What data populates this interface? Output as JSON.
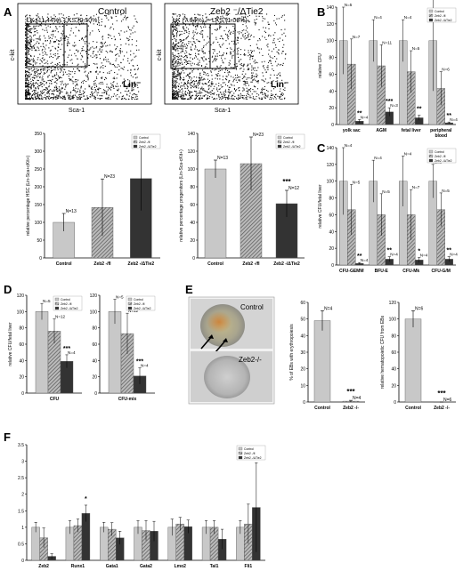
{
  "panels": {
    "A": "A",
    "B": "B",
    "C": "C",
    "D": "D",
    "E": "E",
    "F": "F"
  },
  "colors": {
    "control": "#c8c8c8",
    "zeb2_fl": "#8a8a8a",
    "zeb2_ko": "#333333",
    "axis": "#000000"
  },
  "legend": [
    "Control",
    "Zeb2 -/fl",
    "Zeb2 -/ΔTie2"
  ],
  "facs": [
    {
      "title": "Control",
      "gate_lk": "LK (11.44%)",
      "gate_lks": "LKS (0.50%)",
      "xaxis": "Sca-1",
      "yaxis": "c-kit",
      "corner": "Lin⁻"
    },
    {
      "title": "Zeb2 ⁻/ΔTie2",
      "gate_lk": "LK (7.64%)",
      "gate_lks": "LKS (1.06%)",
      "xaxis": "Sca-1",
      "yaxis": "c-kit",
      "corner": "Lin⁻"
    }
  ],
  "micro": {
    "top_label": "Control",
    "bottom_label": "Zeb2-/-"
  },
  "chart_data": [
    {
      "id": "A1",
      "type": "bar",
      "ylabel": "relative percentage HSC (Lin-Sca+cKit+)",
      "categories": [
        "Control",
        "Zeb2 -/fl",
        "Zeb2 -/ΔTie2"
      ],
      "yticks": [
        "0",
        "50",
        "100",
        "150",
        "200",
        "250",
        "300",
        "350"
      ],
      "ylim": [
        0,
        350
      ],
      "series": [
        {
          "values": [
            100,
            142,
            223
          ]
        }
      ],
      "err": [
        [
          25
        ],
        [
          80
        ],
        [
          90
        ]
      ],
      "labels": [
        "N=13",
        "N=23",
        "N=12"
      ],
      "stars": [
        "",
        "",
        "***"
      ]
    },
    {
      "id": "A2",
      "type": "bar",
      "ylabel": "relative percentage progenitors (Lin-Sca-cKit+)",
      "categories": [
        "Control",
        "Zeb2 -/fl",
        "Zeb2 -/ΔTie2"
      ],
      "yticks": [
        "0",
        "20",
        "40",
        "60",
        "80",
        "100",
        "120",
        "140"
      ],
      "ylim": [
        0,
        140
      ],
      "series": [
        {
          "values": [
            100,
            106,
            61
          ]
        }
      ],
      "err": [
        [
          10
        ],
        [
          30
        ],
        [
          15
        ]
      ],
      "labels": [
        "N=13",
        "N=23",
        "N=12"
      ],
      "stars": [
        "",
        "",
        "***"
      ]
    },
    {
      "id": "B",
      "type": "bar",
      "ylabel": "relative CFU",
      "categories": [
        "yolk sac",
        "AGM",
        "fetal liver",
        "peripheral\nblood"
      ],
      "yticks": [
        "0",
        "20",
        "40",
        "60",
        "80",
        "100",
        "120",
        "140"
      ],
      "ylim": [
        0,
        140
      ],
      "series": [
        {
          "name": "Control",
          "values": [
            100,
            100,
            100,
            100
          ]
        },
        {
          "name": "Zeb2 -/fl",
          "values": [
            72,
            70,
            63,
            43
          ]
        },
        {
          "name": "Zeb2 -/ΔTie2",
          "values": [
            4,
            15,
            8,
            2
          ]
        }
      ],
      "err": [
        [
          40,
          25,
          25,
          60
        ],
        [
          30,
          25,
          25,
          20
        ],
        [
          2,
          5,
          3,
          1
        ]
      ],
      "labels": [
        [
          "N=5",
          "N=7",
          "N=4"
        ],
        [
          "N=4",
          "N=11",
          "N=3"
        ],
        [
          "N=4",
          "N=5",
          ""
        ],
        [
          "N=3",
          "N=6",
          "N=4"
        ]
      ],
      "stars": [
        [
          "",
          "",
          "**"
        ],
        [
          "",
          "",
          "***"
        ],
        [
          "",
          "",
          "**"
        ],
        [
          "",
          "",
          "**"
        ]
      ]
    },
    {
      "id": "C",
      "type": "bar",
      "ylabel": "relative CFU/fetal liver",
      "categories": [
        "CFU-GEMM",
        "BFU-E",
        "CFU-Mk",
        "CFU-G/M"
      ],
      "yticks": [
        "0",
        "20",
        "40",
        "60",
        "80",
        "100",
        "120",
        "140"
      ],
      "ylim": [
        0,
        140
      ],
      "series": [
        {
          "name": "Control",
          "values": [
            100,
            100,
            100,
            100
          ]
        },
        {
          "name": "Zeb2 -/fl",
          "values": [
            66,
            60,
            60,
            66
          ]
        },
        {
          "name": "Zeb2 -/ΔTie2",
          "values": [
            2,
            7,
            6,
            7
          ]
        }
      ],
      "err": [
        [
          40,
          25,
          30,
          20
        ],
        [
          30,
          25,
          30,
          20
        ],
        [
          1,
          3,
          3,
          3
        ]
      ],
      "labels": [
        [
          "N=4",
          "N=5",
          "N=4"
        ],
        [
          "N=4",
          "N=5",
          "N=4"
        ],
        [
          "N=4",
          "N=7",
          "N=4"
        ],
        [
          "N=4",
          "N=5",
          "N=4"
        ]
      ],
      "stars": [
        [
          "",
          "",
          "**"
        ],
        [
          "",
          "",
          "**"
        ],
        [
          "",
          "",
          "*"
        ],
        [
          "",
          "",
          "**"
        ]
      ]
    },
    {
      "id": "D1",
      "type": "bar",
      "ylabel": "relative CFU/fetal liver",
      "categories": [
        "CFU"
      ],
      "yticks": [
        "0",
        "20",
        "40",
        "60",
        "80",
        "100",
        "120"
      ],
      "ylim": [
        0,
        120
      ],
      "series": [
        {
          "name": "Control",
          "values": [
            100
          ]
        },
        {
          "name": "Zeb2 -/fl",
          "values": [
            76
          ]
        },
        {
          "name": "Zeb2 -/ΔTie2",
          "values": [
            39
          ]
        }
      ],
      "err": [
        [
          10
        ],
        [
          15
        ],
        [
          8
        ]
      ],
      "labels": [
        [
          "N=5",
          "N=12",
          "N=4"
        ]
      ],
      "stars": [
        [
          "",
          "",
          "***"
        ]
      ]
    },
    {
      "id": "D2",
      "type": "bar",
      "ylabel": "",
      "categories": [
        "CFU-mix"
      ],
      "yticks": [
        "0",
        "20",
        "40",
        "60",
        "80",
        "100",
        "120"
      ],
      "ylim": [
        0,
        120
      ],
      "series": [
        {
          "name": "Control",
          "values": [
            100
          ]
        },
        {
          "name": "Zeb2 -/fl",
          "values": [
            73
          ]
        },
        {
          "name": "Zeb2 -/ΔTie2",
          "values": [
            21
          ]
        }
      ],
      "err": [
        [
          15
        ],
        [
          25
        ],
        [
          10
        ]
      ],
      "labels": [
        [
          "N=5",
          "N=12",
          "N=4"
        ]
      ],
      "stars": [
        [
          "",
          "",
          "***"
        ]
      ]
    },
    {
      "id": "E1",
      "type": "bar",
      "ylabel": "% of EBs with erythropoiesis",
      "categories": [
        "Control",
        "Zeb2 -/-"
      ],
      "yticks": [
        "0",
        "10",
        "20",
        "30",
        "40",
        "50",
        "60"
      ],
      "ylim": [
        0,
        60
      ],
      "series": [
        {
          "values": [
            49,
            0.5
          ]
        }
      ],
      "err": [
        [
          6
        ],
        [
          0.5
        ]
      ],
      "labels": [
        "N=4",
        "N=4"
      ],
      "stars": [
        "",
        "***"
      ]
    },
    {
      "id": "E2",
      "type": "bar",
      "ylabel": "relative hematopoietic CFU from EBs",
      "categories": [
        "Control",
        "Zeb2 -/-"
      ],
      "yticks": [
        "0",
        "20",
        "40",
        "60",
        "80",
        "100",
        "120"
      ],
      "ylim": [
        0,
        120
      ],
      "series": [
        {
          "values": [
            100,
            0
          ]
        }
      ],
      "err": [
        [
          10
        ],
        [
          0
        ]
      ],
      "labels": [
        "N=6",
        "N=6"
      ],
      "stars": [
        "",
        "***"
      ]
    },
    {
      "id": "F",
      "type": "bar",
      "ylabel": "",
      "categories": [
        "Zeb2",
        "Runx1",
        "Gata1",
        "Gata2",
        "Lmo2",
        "Tal1",
        "Fli1"
      ],
      "yticks": [
        "0",
        "0.5",
        "1",
        "1.5",
        "2",
        "2.5",
        "3",
        "3.5"
      ],
      "ylim": [
        0,
        3.5
      ],
      "series": [
        {
          "name": "Control",
          "values": [
            1,
            1,
            1,
            1,
            1,
            1,
            1
          ]
        },
        {
          "name": "Zeb2 -/fl",
          "values": [
            0.68,
            1.05,
            0.94,
            0.9,
            1.1,
            1.0,
            1.1
          ]
        },
        {
          "name": "Zeb2 -/ΔTie2",
          "values": [
            0.12,
            1.42,
            0.68,
            0.88,
            1.02,
            0.64,
            1.6
          ]
        }
      ],
      "err": [
        [
          0.15,
          0.2,
          0.15,
          0.2,
          0.25,
          0.2,
          0.2
        ],
        [
          0.3,
          0.2,
          0.2,
          0.3,
          0.2,
          0.2,
          0.6
        ],
        [
          0.08,
          0.25,
          0.2,
          0.3,
          0.2,
          0.3,
          1.35
        ]
      ],
      "labels": [],
      "stars": [
        [
          "",
          "",
          "",
          "",
          "",
          "",
          ""
        ],
        [
          "",
          "",
          "*",
          "",
          "",
          "",
          ""
        ],
        [
          "",
          "",
          "",
          "",
          "",
          "",
          ""
        ],
        [
          "",
          "",
          "",
          "",
          "",
          "",
          ""
        ],
        [
          "",
          "",
          "",
          "",
          "",
          "",
          ""
        ],
        [
          "",
          "",
          "",
          "",
          "",
          "",
          ""
        ],
        [
          "",
          "",
          "",
          "",
          "",
          "",
          ""
        ]
      ]
    }
  ]
}
